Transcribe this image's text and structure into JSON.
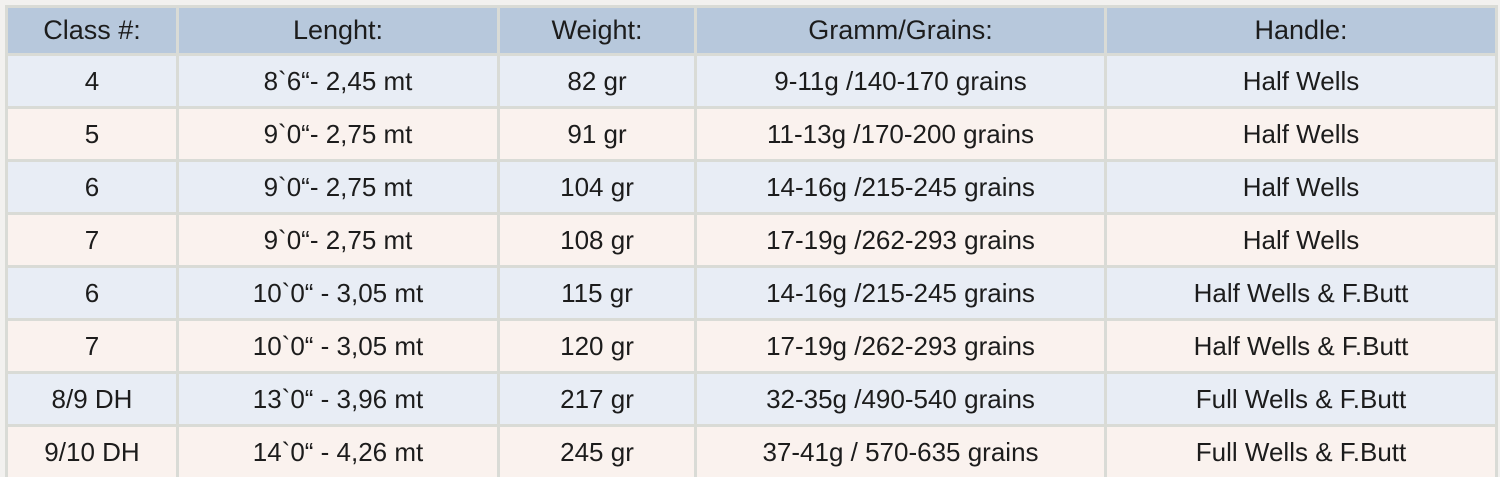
{
  "colors": {
    "header_bg": "#b7c8dc",
    "row_blue": "#e8edf5",
    "row_cream": "#faf2ee",
    "border": "#d9dbd6",
    "text": "#1c1c1c",
    "page_bg": "#f2f1ef"
  },
  "table": {
    "columns": [
      {
        "key": "class",
        "label": "Class #:"
      },
      {
        "key": "length",
        "label": "Lenght:"
      },
      {
        "key": "weight",
        "label": "Weight:"
      },
      {
        "key": "gramm-grains",
        "label": "Gramm/Grains:"
      },
      {
        "key": "handle",
        "label": "Handle:"
      }
    ],
    "rows": [
      {
        "cells": [
          "4",
          "8`6“- 2,45 mt",
          "82 gr",
          "9-11g /140-170 grains",
          "Half Wells"
        ]
      },
      {
        "cells": [
          "5",
          "9`0“- 2,75 mt",
          "91 gr",
          "11-13g /170-200 grains",
          "Half Wells"
        ]
      },
      {
        "cells": [
          "6",
          "9`0“- 2,75 mt",
          "104 gr",
          "14-16g /215-245 grains",
          "Half Wells"
        ]
      },
      {
        "cells": [
          "7",
          "9`0“- 2,75 mt",
          "108 gr",
          "17-19g /262-293 grains",
          "Half Wells"
        ]
      },
      {
        "cells": [
          "6",
          "10`0“ - 3,05 mt",
          "115 gr",
          "14-16g /215-245 grains",
          "Half Wells & F.Butt"
        ]
      },
      {
        "cells": [
          "7",
          "10`0“ - 3,05 mt",
          "120 gr",
          "17-19g /262-293 grains",
          "Half Wells & F.Butt"
        ]
      },
      {
        "cells": [
          "8/9 DH",
          "13`0“ - 3,96 mt",
          "217 gr",
          "32-35g /490-540 grains",
          "Full Wells & F.Butt"
        ]
      },
      {
        "cells": [
          "9/10 DH",
          "14`0“ - 4,26 mt",
          "245 gr",
          "37-41g / 570-635 grains",
          "Full Wells & F.Butt"
        ]
      }
    ]
  },
  "chart_data": {
    "type": "table",
    "title": "Fly rod specification table",
    "columns": [
      "Class #:",
      "Lenght:",
      "Weight:",
      "Gramm/Grains:",
      "Handle:"
    ],
    "rows": [
      [
        "4",
        "8`6“- 2,45 mt",
        "82 gr",
        "9-11g /140-170 grains",
        "Half Wells"
      ],
      [
        "5",
        "9`0“- 2,75 mt",
        "91 gr",
        "11-13g /170-200 grains",
        "Half Wells"
      ],
      [
        "6",
        "9`0“- 2,75 mt",
        "104 gr",
        "14-16g /215-245 grains",
        "Half Wells"
      ],
      [
        "7",
        "9`0“- 2,75 mt",
        "108 gr",
        "17-19g /262-293 grains",
        "Half Wells"
      ],
      [
        "6",
        "10`0“ - 3,05 mt",
        "115 gr",
        "14-16g /215-245 grains",
        "Half Wells & F.Butt"
      ],
      [
        "7",
        "10`0“ - 3,05 mt",
        "120 gr",
        "17-19g /262-293 grains",
        "Half Wells & F.Butt"
      ],
      [
        "8/9 DH",
        "13`0“ - 3,96 mt",
        "217 gr",
        "32-35g /490-540 grains",
        "Full Wells & F.Butt"
      ],
      [
        "9/10 DH",
        "14`0“ - 4,26 mt",
        "245 gr",
        "37-41g / 570-635 grains",
        "Full Wells & F.Butt"
      ]
    ]
  }
}
